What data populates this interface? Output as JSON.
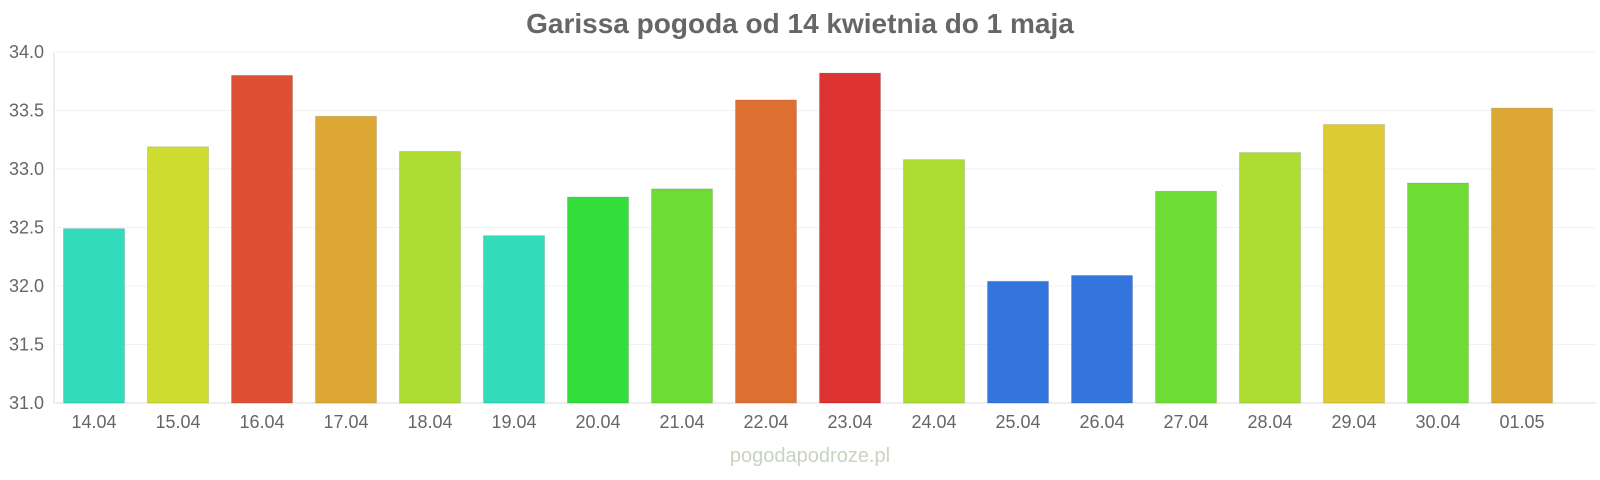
{
  "chart_data": {
    "type": "bar",
    "title": "Garissa pogoda od 14 kwietnia do 1 maja",
    "xlabel": "",
    "ylabel": "",
    "categories": [
      "14.04",
      "15.04",
      "16.04",
      "17.04",
      "18.04",
      "19.04",
      "20.04",
      "21.04",
      "22.04",
      "23.04",
      "24.04",
      "25.04",
      "26.04",
      "27.04",
      "28.04",
      "29.04",
      "30.04",
      "01.05"
    ],
    "values": [
      32.49,
      33.19,
      33.8,
      33.45,
      33.15,
      32.43,
      32.76,
      32.83,
      33.59,
      33.82,
      33.08,
      32.04,
      32.09,
      32.81,
      33.14,
      33.38,
      32.88,
      33.52
    ],
    "colors": [
      "#33dcbb",
      "#cfdd31",
      "#dd5033",
      "#dca833",
      "#addd33",
      "#33dcbb",
      "#33dd3b",
      "#6ddd36",
      "#dd6f33",
      "#dd3333",
      "#addd33",
      "#3375dc",
      "#3375dc",
      "#6ddd36",
      "#addd33",
      "#dccb33",
      "#6ddd36",
      "#dca833"
    ],
    "ylim": [
      31.0,
      34.0
    ],
    "yticks": [
      "31.0",
      "31.5",
      "32.0",
      "32.5",
      "33.0",
      "33.5",
      "34.0"
    ],
    "grid": true,
    "legend": "none"
  },
  "watermark": "pogodapodroze.pl"
}
